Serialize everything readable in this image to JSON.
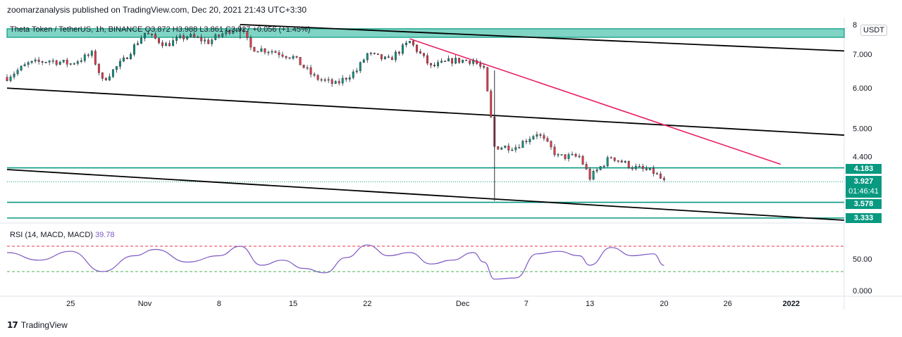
{
  "header": {
    "publisher_line": "zoomarzanalysis published on TradingView.com, Dec 20, 2021 21:43 UTC+3:30"
  },
  "footer": {
    "brand": "TradingView",
    "logo_mark": "17"
  },
  "currency_label": "USDT",
  "legend": {
    "main": "Theta Token / TetherUS, 1h, BINANCE  O3.872  H3.988  L3.861  C3.927  +0.056 (+1.45%)",
    "rsi_label": "RSI (14, MACD, MACD)",
    "rsi_value": "39.78"
  },
  "colors": {
    "up": "#089981",
    "down": "#f23645",
    "candle_body": "#2a2e39",
    "trendline": "#e91e63",
    "channel": "#000000",
    "level": "#089981",
    "rsi": "#7e57c2",
    "rsi_upper_band": "#f23645",
    "rsi_lower_band": "#4caf50",
    "zone_fill": "#7fd4c4"
  },
  "price_labels": {
    "level_1": "4.183",
    "last_price": "3.927",
    "countdown": "01:46:41",
    "level_2": "3.578",
    "level_3": "3.333"
  },
  "chart_data": {
    "type": "candlestick",
    "symbol": "Theta Token / TetherUS",
    "y_scale": "log",
    "y_ticks": [
      "8",
      "7.000",
      "6.000",
      "5.000",
      "4.400"
    ],
    "x_ticks": [
      "25",
      "Nov",
      "8",
      "15",
      "22",
      "Dec",
      "7",
      "13",
      "20",
      "26",
      "2022"
    ],
    "x_tick_dates": [
      "2021-10-25",
      "2021-11-01",
      "2021-11-08",
      "2021-11-15",
      "2021-11-22",
      "2021-12-01",
      "2021-12-07",
      "2021-12-13",
      "2021-12-20",
      "2021-12-26",
      "2022-01-01"
    ],
    "x_range": [
      "2021-10-19",
      "2022-01-06"
    ],
    "y_range": [
      3.3,
      8.1
    ],
    "close_path": [
      [
        "2021-10-19",
        6.3
      ],
      [
        "2021-10-21",
        6.7
      ],
      [
        "2021-10-23",
        6.8
      ],
      [
        "2021-10-25",
        6.7
      ],
      [
        "2021-10-27",
        7.0
      ],
      [
        "2021-10-28",
        6.2
      ],
      [
        "2021-10-30",
        6.8
      ],
      [
        "2021-11-01",
        7.7
      ],
      [
        "2021-11-03",
        7.3
      ],
      [
        "2021-11-05",
        7.6
      ],
      [
        "2021-11-07",
        7.4
      ],
      [
        "2021-11-09",
        7.8
      ],
      [
        "2021-11-10",
        7.9
      ],
      [
        "2021-11-11",
        7.2
      ],
      [
        "2021-11-13",
        7.1
      ],
      [
        "2021-11-15",
        6.9
      ],
      [
        "2021-11-17",
        6.3
      ],
      [
        "2021-11-19",
        6.1
      ],
      [
        "2021-11-21",
        6.5
      ],
      [
        "2021-11-22",
        7.0
      ],
      [
        "2021-11-24",
        6.8
      ],
      [
        "2021-11-26",
        7.4
      ],
      [
        "2021-11-28",
        6.6
      ],
      [
        "2021-11-30",
        6.8
      ],
      [
        "2021-12-02",
        6.8
      ],
      [
        "2021-12-03",
        6.5
      ],
      [
        "2021-12-04",
        4.6
      ],
      [
        "2021-12-06",
        4.6
      ],
      [
        "2021-12-08",
        4.9
      ],
      [
        "2021-12-10",
        4.4
      ],
      [
        "2021-12-12",
        4.4
      ],
      [
        "2021-12-13",
        4.0
      ],
      [
        "2021-12-15",
        4.4
      ],
      [
        "2021-12-17",
        4.2
      ],
      [
        "2021-12-19",
        4.1
      ],
      [
        "2021-12-20",
        3.927
      ]
    ],
    "wick_extremes": {
      "low": [
        "2021-12-04",
        3.6
      ],
      "high": [
        "2021-11-10",
        8.0
      ]
    },
    "horizontal_levels": [
      4.183,
      3.578,
      3.333
    ],
    "resistance_zone": [
      7.55,
      7.85
    ],
    "trendlines": [
      {
        "from": [
          "2021-11-10",
          8.0
        ],
        "to": [
          "2022-01-06",
          7.1
        ]
      },
      {
        "from": [
          "2021-10-19",
          6.0
        ],
        "to": [
          "2022-01-06",
          4.85
        ]
      },
      {
        "from": [
          "2021-10-19",
          4.15
        ],
        "to": [
          "2022-01-06",
          3.3
        ]
      },
      {
        "from": [
          "2021-11-26",
          7.5
        ],
        "to": [
          "2021-12-31",
          4.25
        ]
      }
    ],
    "rsi": {
      "value": 39.78,
      "y_ticks": [
        "50.00",
        "0.000"
      ],
      "upper_band": 70,
      "lower_band": 30,
      "path": [
        [
          "2021-10-19",
          60
        ],
        [
          "2021-10-22",
          48
        ],
        [
          "2021-10-25",
          62
        ],
        [
          "2021-10-28",
          30
        ],
        [
          "2021-10-31",
          55
        ],
        [
          "2021-11-02",
          65
        ],
        [
          "2021-11-05",
          45
        ],
        [
          "2021-11-08",
          55
        ],
        [
          "2021-11-10",
          70
        ],
        [
          "2021-11-12",
          40
        ],
        [
          "2021-11-14",
          48
        ],
        [
          "2021-11-16",
          35
        ],
        [
          "2021-11-18",
          28
        ],
        [
          "2021-11-20",
          52
        ],
        [
          "2021-11-22",
          72
        ],
        [
          "2021-11-24",
          55
        ],
        [
          "2021-11-26",
          60
        ],
        [
          "2021-11-28",
          42
        ],
        [
          "2021-11-30",
          48
        ],
        [
          "2021-12-02",
          60
        ],
        [
          "2021-12-03",
          45
        ],
        [
          "2021-12-04",
          18
        ],
        [
          "2021-12-06",
          20
        ],
        [
          "2021-12-08",
          58
        ],
        [
          "2021-12-10",
          62
        ],
        [
          "2021-12-12",
          55
        ],
        [
          "2021-12-13",
          40
        ],
        [
          "2021-12-15",
          68
        ],
        [
          "2021-12-17",
          55
        ],
        [
          "2021-12-19",
          58
        ],
        [
          "2021-12-20",
          39.78
        ]
      ]
    }
  }
}
